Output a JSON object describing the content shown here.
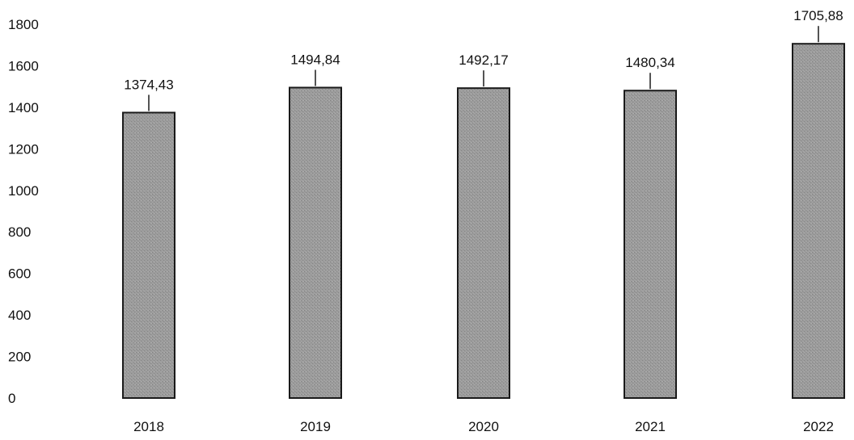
{
  "chart_data": {
    "type": "bar",
    "categories": [
      "2018",
      "2019",
      "2020",
      "2021",
      "2022"
    ],
    "values": [
      1374.43,
      1494.84,
      1492.17,
      1480.34,
      1705.88
    ],
    "value_labels": [
      "1374,43",
      "1494,84",
      "1492,17",
      "1480,34",
      "1705,88"
    ],
    "y_ticks": [
      0,
      200,
      400,
      600,
      800,
      1000,
      1200,
      1400,
      1600,
      1800
    ],
    "ylim": [
      0,
      1800
    ],
    "title": "",
    "xlabel": "",
    "ylabel": "",
    "grid": false,
    "legend": "none",
    "colors": {
      "bar_fill": "#9a9a9a",
      "bar_stroke": "#1a1a1a",
      "text": "#111111"
    }
  }
}
